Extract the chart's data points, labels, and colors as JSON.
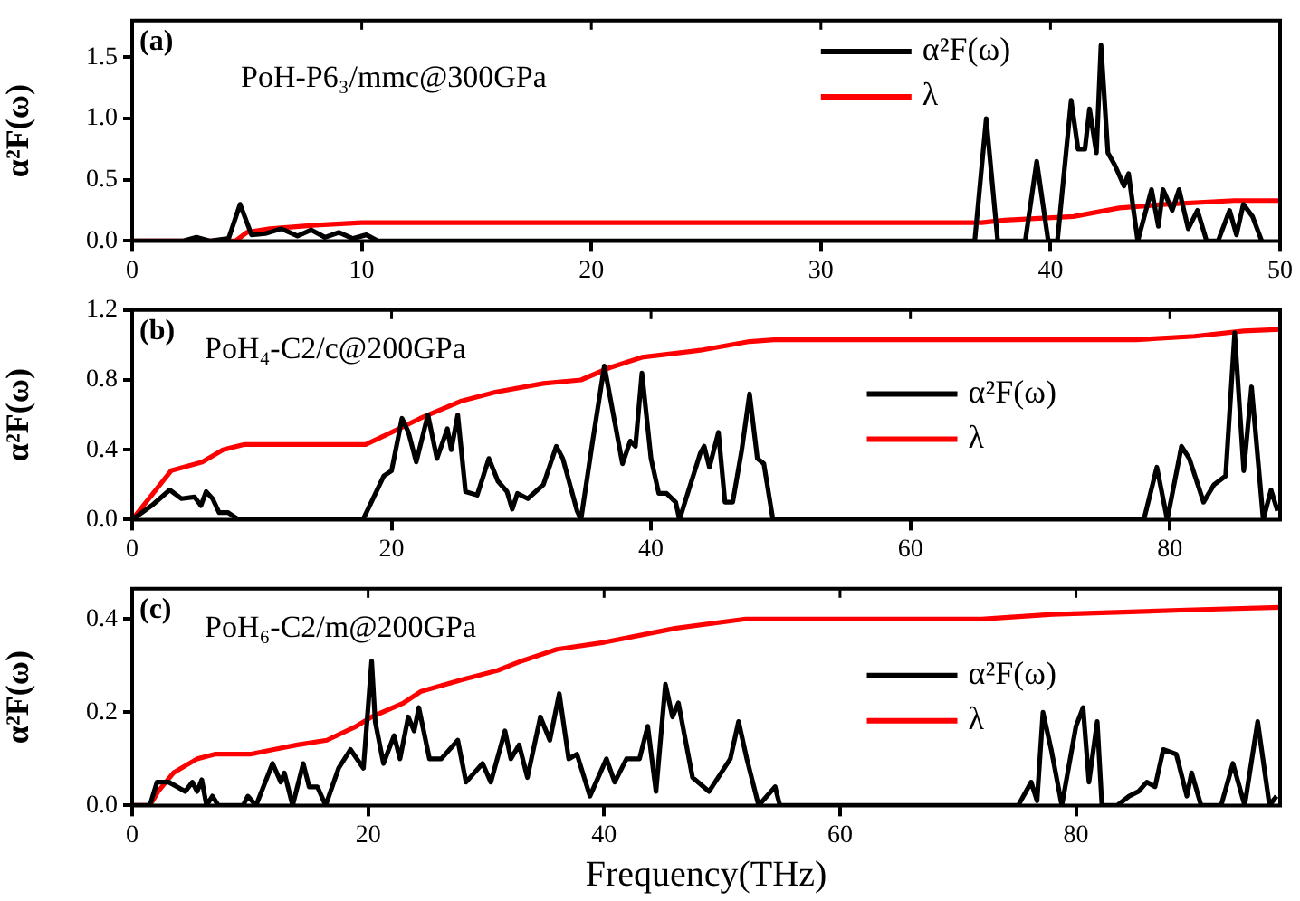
{
  "chart_data": [
    {
      "type": "line",
      "ylabel": "α²F(ω)",
      "xlim": [
        0,
        50
      ],
      "xticks": [
        0,
        10,
        20,
        30,
        40,
        50
      ],
      "ylim": [
        0,
        1.8
      ],
      "yticks": [
        {
          "value": 0,
          "label": "0.0"
        },
        {
          "value": 0.5,
          "label": "0.5"
        },
        {
          "value": 1,
          "label": "1.0"
        },
        {
          "value": 1.5,
          "label": "1.5"
        }
      ],
      "legend": "top right",
      "annotations": [
        "(a)",
        "PoH-P6₃/mmc@300GPa"
      ],
      "series": [
        {
          "name": "α²F(ω)",
          "color": "#000000",
          "x": [
            0,
            2.2,
            2.8,
            3.4,
            4.2,
            4.7,
            5.2,
            5.8,
            6.5,
            7.2,
            7.8,
            8.4,
            9,
            9.6,
            10.2,
            10.7,
            36.7,
            37.2,
            37.7,
            38.9,
            39.4,
            39.9,
            40.3,
            40.9,
            41.2,
            41.5,
            41.7,
            42,
            42.2,
            42.5,
            42.8,
            43.2,
            43.4,
            43.8,
            44.4,
            44.7,
            44.9,
            45.3,
            45.6,
            46,
            46.4,
            46.8,
            47.3,
            47.8,
            48.1,
            48.4,
            48.8,
            49.2
          ],
          "values": [
            0,
            0,
            0.03,
            0,
            0.02,
            0.3,
            0.05,
            0.06,
            0.1,
            0.04,
            0.09,
            0.03,
            0.07,
            0.02,
            0.05,
            0,
            0,
            1,
            0,
            0,
            0.65,
            0,
            0,
            1.15,
            0.75,
            0.75,
            1.08,
            0.72,
            1.6,
            0.72,
            0.62,
            0.45,
            0.55,
            0,
            0.42,
            0.12,
            0.42,
            0.25,
            0.42,
            0.1,
            0.25,
            0,
            0,
            0.25,
            0.05,
            0.3,
            0.2,
            0
          ]
        },
        {
          "name": "λ",
          "color": "#ff0000",
          "x": [
            0,
            4.5,
            5,
            6,
            8,
            10,
            37,
            38,
            41,
            43,
            45,
            48,
            50
          ],
          "values": [
            0,
            0,
            0.07,
            0.1,
            0.13,
            0.15,
            0.15,
            0.17,
            0.2,
            0.27,
            0.3,
            0.33,
            0.33
          ]
        }
      ]
    },
    {
      "type": "line",
      "ylabel": "α²F(ω)",
      "xlim": [
        0,
        88.5
      ],
      "xticks": [
        0,
        20,
        40,
        60,
        80
      ],
      "ylim": [
        0,
        1.2
      ],
      "yticks": [
        {
          "value": 0,
          "label": "0.0"
        },
        {
          "value": 0.4,
          "label": "0.4"
        },
        {
          "value": 0.8,
          "label": "0.8"
        },
        {
          "value": 1.2,
          "label": "1.2"
        }
      ],
      "legend": "right",
      "annotations": [
        "(b)",
        "PoH₄-C2/c@200GPa"
      ],
      "series": [
        {
          "name": "α²F(ω)",
          "color": "#000000",
          "x": [
            0,
            1.5,
            2.9,
            3.8,
            4.8,
            5.3,
            5.7,
            6.2,
            6.7,
            7.4,
            8.2,
            17.8,
            19.4,
            20,
            20.8,
            21.3,
            21.9,
            22.8,
            23.5,
            24.3,
            24.6,
            25.1,
            25.7,
            26.6,
            27.5,
            28.2,
            28.9,
            29.3,
            29.7,
            30.5,
            31.7,
            32.7,
            33.2,
            34.3,
            34.6,
            35.5,
            36.4,
            37.1,
            37.8,
            38.4,
            38.8,
            39.3,
            40,
            40.6,
            41.2,
            41.9,
            42.2,
            42.7,
            43.8,
            44.1,
            44.5,
            45.2,
            45.7,
            46.3,
            47,
            47.6,
            48.2,
            48.7,
            49.4,
            78,
            79,
            79.8,
            80.9,
            81.5,
            82.6,
            83.4,
            84.3,
            85,
            85.7,
            86.3,
            87.2,
            87.8,
            88.3
          ],
          "values": [
            0,
            0.08,
            0.17,
            0.12,
            0.13,
            0.08,
            0.16,
            0.12,
            0.04,
            0.04,
            0,
            0,
            0.25,
            0.28,
            0.58,
            0.5,
            0.33,
            0.6,
            0.35,
            0.52,
            0.4,
            0.6,
            0.16,
            0.14,
            0.35,
            0.22,
            0.16,
            0.06,
            0.15,
            0.12,
            0.2,
            0.42,
            0.35,
            0.05,
            0,
            0.45,
            0.88,
            0.6,
            0.32,
            0.45,
            0.42,
            0.84,
            0.35,
            0.15,
            0.15,
            0.1,
            0,
            0.12,
            0.38,
            0.42,
            0.3,
            0.5,
            0.1,
            0.1,
            0.4,
            0.72,
            0.35,
            0.32,
            0,
            0,
            0.3,
            0,
            0.42,
            0.35,
            0.1,
            0.2,
            0.25,
            1.07,
            0.28,
            0.76,
            0,
            0.17,
            0.05
          ]
        },
        {
          "name": "λ",
          "color": "#ff0000",
          "x": [
            0,
            3,
            5.4,
            7,
            8.6,
            18,
            20,
            22.2,
            25.4,
            28,
            31.7,
            34.6,
            36.8,
            39.3,
            43.8,
            47.6,
            49.5,
            77.4,
            81.9,
            85.7,
            88.5
          ],
          "values": [
            0,
            0.28,
            0.33,
            0.4,
            0.43,
            0.43,
            0.5,
            0.58,
            0.68,
            0.73,
            0.78,
            0.8,
            0.87,
            0.93,
            0.97,
            1.02,
            1.03,
            1.03,
            1.05,
            1.08,
            1.09
          ]
        }
      ]
    },
    {
      "type": "line",
      "xlabel": "Frequency(THz)",
      "ylabel": "α²F(ω)",
      "xlim": [
        0,
        97.3
      ],
      "xticks": [
        0,
        20,
        40,
        60,
        80
      ],
      "ylim": [
        0,
        0.465
      ],
      "yticks": [
        {
          "value": 0,
          "label": "0.0"
        },
        {
          "value": 0.2,
          "label": "0.2"
        },
        {
          "value": 0.4,
          "label": "0.4"
        }
      ],
      "legend": "right",
      "annotations": [
        "(c)",
        "PoH₆-C2/m@200GPa"
      ],
      "series": [
        {
          "name": "α²F(ω)",
          "color": "#000000",
          "x": [
            0,
            1.5,
            2.1,
            3.1,
            3.8,
            4.5,
            5.1,
            5.5,
            5.9,
            6.3,
            6.8,
            7.3,
            9.4,
            9.8,
            10.5,
            11.9,
            12.6,
            12.9,
            13.6,
            14.5,
            15,
            15.7,
            16.4,
            17.5,
            18.5,
            19.6,
            20.3,
            20.6,
            21.3,
            22.2,
            22.7,
            23.4,
            23.9,
            24.3,
            25.2,
            26.2,
            27.6,
            28.3,
            29.7,
            30.4,
            31.6,
            32.1,
            32.8,
            33.5,
            34.6,
            35.4,
            36.2,
            37,
            37.7,
            38.8,
            40.2,
            40.9,
            41.9,
            43,
            43.7,
            44.4,
            45.2,
            45.8,
            46.3,
            47.5,
            48.9,
            50.7,
            51.4,
            52.1,
            53.1,
            54.5,
            54.9,
            75.1,
            76.2,
            76.7,
            77.2,
            77.9,
            78.8,
            80,
            80.6,
            81.1,
            81.8,
            82.2,
            83.5,
            84.5,
            85.3,
            86,
            86.7,
            87.4,
            88.5,
            89.4,
            89.8,
            90.6,
            92.3,
            93.3,
            94.3,
            95.4,
            96.4,
            97
          ],
          "values": [
            0,
            0,
            0.05,
            0.05,
            0.04,
            0.03,
            0.05,
            0.03,
            0.055,
            0,
            0.02,
            0,
            0,
            0.02,
            0,
            0.09,
            0.05,
            0.07,
            0,
            0.09,
            0.04,
            0.04,
            0,
            0.08,
            0.12,
            0.08,
            0.31,
            0.18,
            0.09,
            0.15,
            0.1,
            0.19,
            0.16,
            0.21,
            0.1,
            0.1,
            0.14,
            0.05,
            0.09,
            0.05,
            0.16,
            0.1,
            0.13,
            0.06,
            0.19,
            0.14,
            0.24,
            0.1,
            0.11,
            0.02,
            0.1,
            0.05,
            0.1,
            0.1,
            0.17,
            0.03,
            0.26,
            0.19,
            0.22,
            0.06,
            0.03,
            0.1,
            0.18,
            0.1,
            0,
            0.04,
            0,
            0,
            0.05,
            0.01,
            0.2,
            0.12,
            0,
            0.17,
            0.21,
            0.05,
            0.18,
            0,
            0,
            0.02,
            0.03,
            0.05,
            0.04,
            0.12,
            0.11,
            0.02,
            0.07,
            0,
            0,
            0.09,
            0,
            0.18,
            0,
            0.02
          ]
        },
        {
          "name": "λ",
          "color": "#ff0000",
          "x": [
            0,
            1.5,
            2.2,
            3.5,
            5.5,
            7,
            10,
            12,
            14,
            16.5,
            19,
            20.3,
            23,
            24.5,
            28,
            31,
            33,
            36,
            40,
            43,
            46,
            52,
            72,
            78,
            90,
            97.3
          ],
          "values": [
            0,
            0,
            0.03,
            0.07,
            0.1,
            0.11,
            0.11,
            0.12,
            0.13,
            0.14,
            0.17,
            0.19,
            0.22,
            0.245,
            0.27,
            0.29,
            0.31,
            0.335,
            0.35,
            0.365,
            0.38,
            0.4,
            0.4,
            0.41,
            0.42,
            0.425
          ]
        }
      ]
    }
  ]
}
